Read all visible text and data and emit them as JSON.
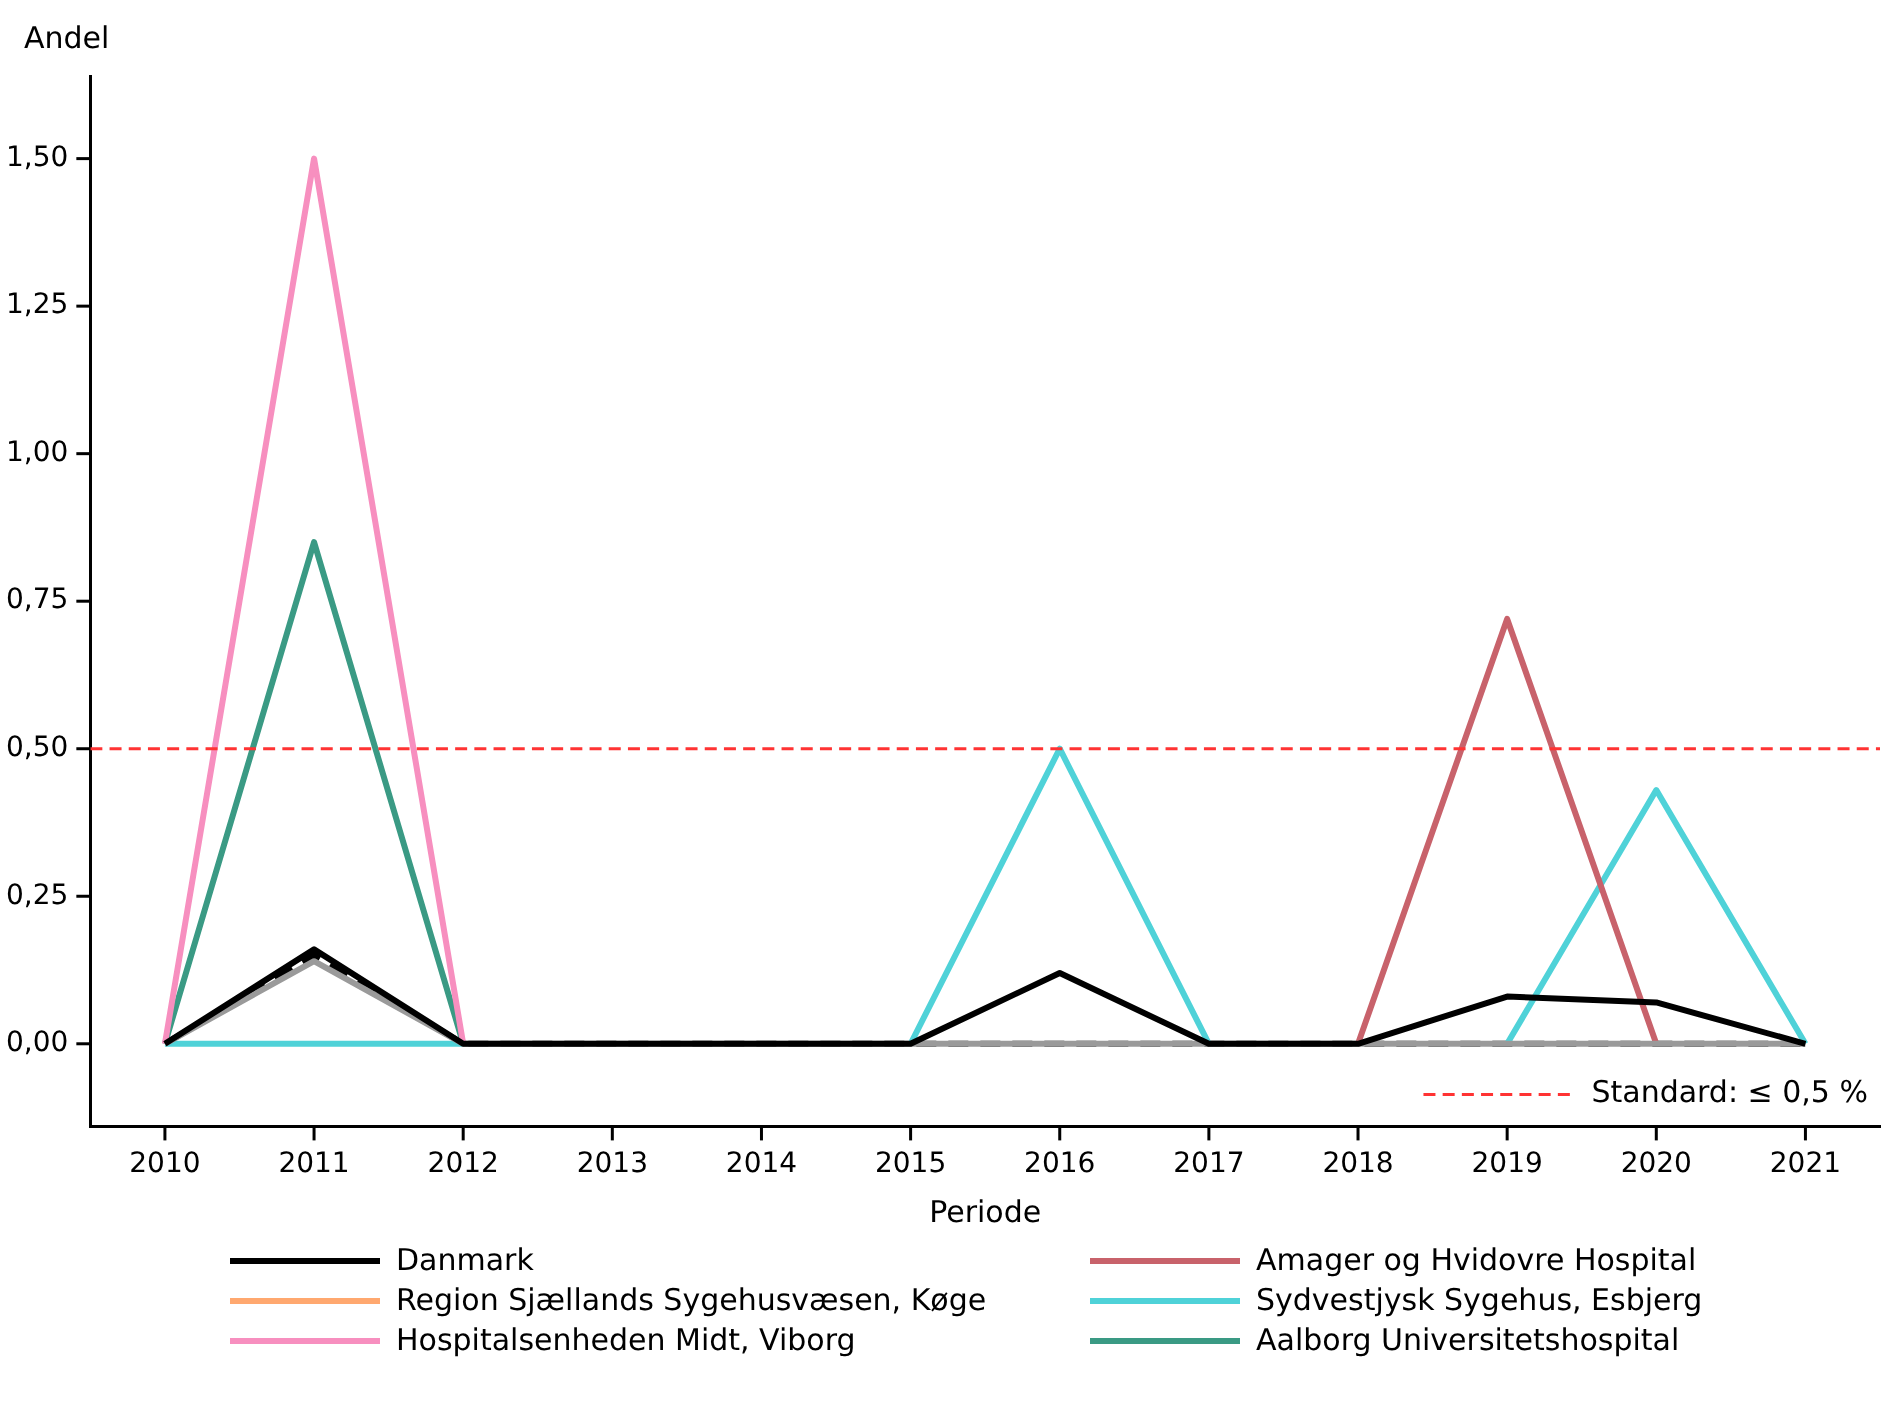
{
  "chart_data": {
    "type": "line",
    "xlabel": "Periode",
    "ylabel": "Andel",
    "categories": [
      "2010",
      "2011",
      "2012",
      "2013",
      "2014",
      "2015",
      "2016",
      "2017",
      "2018",
      "2019",
      "2020",
      "2021"
    ],
    "ylim": [
      -0.14,
      1.64
    ],
    "yticks": [
      {
        "value": 0,
        "label": "0,00"
      },
      {
        "value": 0.25,
        "label": "0,25"
      },
      {
        "value": 0.5,
        "label": "0,50"
      },
      {
        "value": 0.75,
        "label": "0,75"
      },
      {
        "value": 1,
        "label": "1,00"
      },
      {
        "value": 1.25,
        "label": "1,25"
      },
      {
        "value": 1.5,
        "label": "1,50"
      }
    ],
    "series": [
      {
        "name": "Danmark",
        "color": "#000000",
        "values": [
          0,
          0.16,
          0,
          0,
          0,
          0,
          0.12,
          0,
          0,
          0.08,
          0.07,
          0
        ]
      },
      {
        "name": "Region Sjællands Sygehusvæsen, Køge",
        "color": "#ffa86f",
        "values": [
          null,
          null,
          null,
          null,
          null,
          null,
          null,
          null,
          null,
          null,
          null,
          null
        ]
      },
      {
        "name": "Hospitalsenheden Midt, Viborg",
        "color": "#f78fbf",
        "values": [
          0,
          1.5,
          0,
          null,
          null,
          null,
          null,
          null,
          null,
          null,
          null,
          null
        ]
      },
      {
        "color": "#9a9a9a",
        "values": [
          0,
          0.14,
          0,
          0,
          0,
          0,
          0,
          0,
          0,
          0,
          0,
          0
        ]
      },
      {
        "name": "Amager og Hvidovre Hospital",
        "color": "#c8626b",
        "values": [
          null,
          null,
          null,
          null,
          null,
          null,
          null,
          null,
          0,
          0.72,
          0,
          null
        ]
      },
      {
        "name": "Sydvestjysk Sygehus, Esbjerg",
        "color": "#4fd2d8",
        "values": [
          0,
          0,
          0,
          null,
          null,
          0,
          0.5,
          0,
          null,
          0,
          0.43,
          0
        ]
      },
      {
        "name": "Aalborg Universitetshospital",
        "color": "#3a9a84",
        "values": [
          0,
          0.85,
          0,
          null,
          null,
          null,
          null,
          null,
          null,
          null,
          null,
          null
        ]
      },
      {
        "color": "#000000",
        "line_style": "dashed",
        "values": [
          0,
          0.15,
          0,
          0,
          0,
          0,
          0,
          0,
          0,
          0,
          0,
          0
        ]
      }
    ],
    "ref_lines": [
      {
        "axis": "y",
        "value": 0.5,
        "label": "Standard: ≤ 0,5 %",
        "color": "#ff3333",
        "line_style": "dashed"
      }
    ],
    "grid": false,
    "legend": "bottom",
    "marker": "none",
    "line_style": "solid"
  }
}
